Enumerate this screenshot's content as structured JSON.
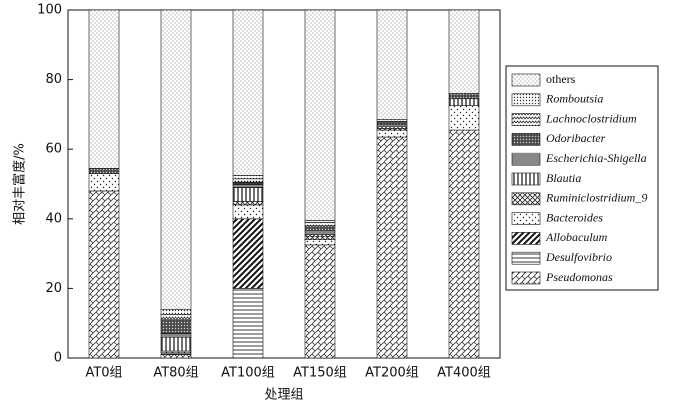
{
  "chart_data": {
    "type": "bar",
    "stacked": true,
    "xlabel": "处理组",
    "ylabel": "相对丰富度/%",
    "categories": [
      "AT0组",
      "AT80组",
      "AT100组",
      "AT150组",
      "AT200组",
      "AT400组"
    ],
    "ylim": [
      0,
      100
    ],
    "yticks": [
      0,
      20,
      40,
      60,
      80,
      100
    ],
    "series": [
      {
        "name": "Pseudomonas",
        "pattern": "brick",
        "italic": true,
        "values": [
          48,
          1,
          0,
          32.5,
          63.5,
          65.5
        ]
      },
      {
        "name": "Desulfovibrio",
        "pattern": "hlines2",
        "italic": true,
        "values": [
          0,
          0.5,
          20,
          0,
          0,
          0
        ]
      },
      {
        "name": "Allobaculum",
        "pattern": "diag",
        "italic": true,
        "values": [
          0,
          0,
          20,
          0,
          0,
          0
        ]
      },
      {
        "name": "Bacteroides",
        "pattern": "sparse",
        "italic": true,
        "values": [
          5,
          0.5,
          4,
          1.5,
          2,
          7
        ]
      },
      {
        "name": "Ruminiclostridium_9",
        "pattern": "cross",
        "italic": true,
        "values": [
          0,
          0,
          1,
          1,
          0.5,
          0
        ]
      },
      {
        "name": "Blautia",
        "pattern": "vlines",
        "italic": true,
        "values": [
          0,
          4,
          4,
          0.5,
          0.5,
          2
        ]
      },
      {
        "name": "Escherichia-Shigella",
        "pattern": "hlines",
        "italic": true,
        "values": [
          0,
          1,
          1,
          1,
          0.5,
          0
        ]
      },
      {
        "name": "Odoribacter",
        "pattern": "grid",
        "italic": true,
        "values": [
          1.5,
          4,
          0.5,
          1.5,
          1,
          1.5
        ]
      },
      {
        "name": "Lachnoclostridium",
        "pattern": "wave",
        "italic": true,
        "values": [
          0,
          1.5,
          1,
          1,
          0.5,
          0
        ]
      },
      {
        "name": "Romboutsia",
        "pattern": "dense",
        "italic": true,
        "values": [
          0,
          1.5,
          1,
          0.5,
          0,
          0
        ]
      },
      {
        "name": "others",
        "pattern": "dots",
        "italic": false,
        "values": [
          45.5,
          86,
          47.5,
          60.5,
          31.5,
          24
        ]
      }
    ]
  }
}
